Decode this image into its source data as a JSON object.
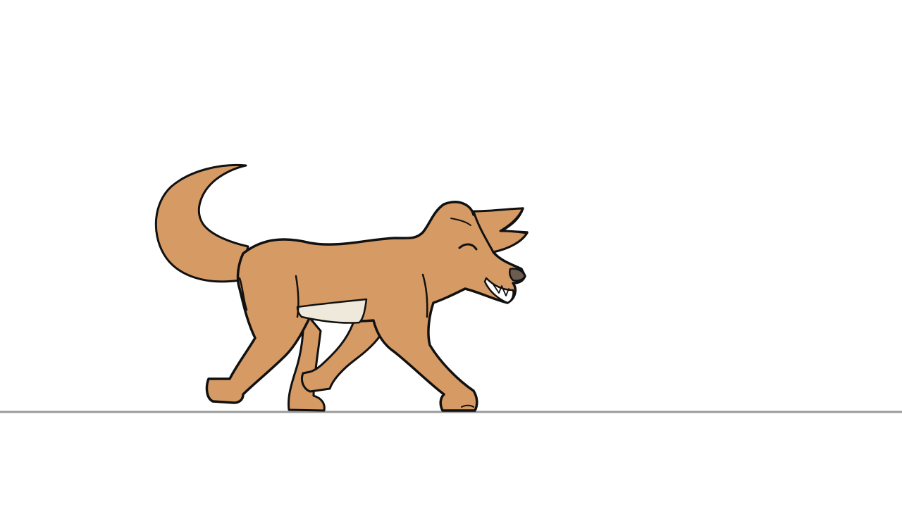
{
  "scene": {
    "background": "#ffffff",
    "subject": "dog",
    "pose": "walking-right",
    "expression": "happy-eyes-closed"
  },
  "colors": {
    "fur": "#d69a64",
    "fur_shadow": "#c98a55",
    "belly": "#efe9dc",
    "outline": "#111111",
    "nose": "#6b5c52",
    "teeth": "#ffffff",
    "ground": "#9a9a9a"
  }
}
